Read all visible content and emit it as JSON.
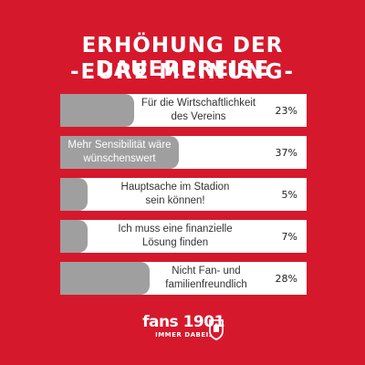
{
  "header": {
    "title_line1": "ERHÖHUNG DER DAUERPREISE",
    "title_line2": "-EURE MEINUNG-"
  },
  "colors": {
    "background": "#d6182c",
    "bar_fill": "#9f9f9f",
    "bar_track": "#ffffff"
  },
  "chart_data": {
    "type": "bar",
    "orientation": "horizontal",
    "categories": [
      "Für die Wirtschaftlichkeit\ndes Vereins",
      "Mehr Sensibilität wäre\nwünschenswert",
      "Hauptsache im Stadion\nsein können!",
      "Ich muss eine finanzielle\nLösung finden",
      "Nicht Fan- und\nfamilienfreundlich"
    ],
    "values": [
      23,
      37,
      5,
      7,
      28
    ],
    "value_labels": [
      "23%",
      "37%",
      "5%",
      "7%",
      "28%"
    ],
    "xlim": [
      0,
      100
    ],
    "grid": false
  },
  "logo": {
    "main": "fans 1901",
    "sub": "IMMER DABEI.",
    "badge_icon": "club-crest-icon"
  }
}
